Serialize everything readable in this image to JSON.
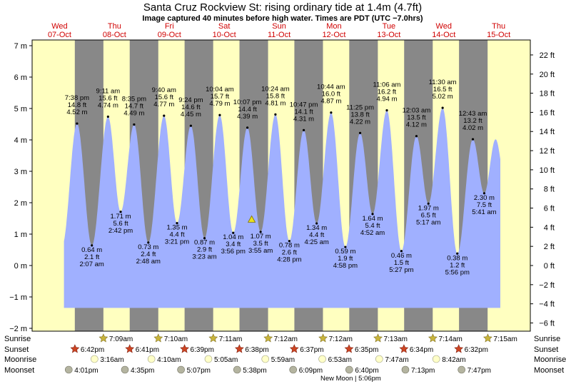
{
  "title": "Santa Cruz Rockview St: rising  ordinary tide at 1.4m (4.7ft)",
  "subtitle": "Image captured 40 minutes before high water. Times are PDT (UTC −7.0hrs)",
  "days": [
    {
      "dow": "Wed",
      "date": "07-Oct"
    },
    {
      "dow": "Thu",
      "date": "08-Oct"
    },
    {
      "dow": "Fri",
      "date": "09-Oct"
    },
    {
      "dow": "Sat",
      "date": "10-Oct"
    },
    {
      "dow": "Sun",
      "date": "11-Oct"
    },
    {
      "dow": "Mon",
      "date": "12-Oct"
    },
    {
      "dow": "Tue",
      "date": "13-Oct"
    },
    {
      "dow": "Wed",
      "date": "14-Oct"
    },
    {
      "dow": "Thu",
      "date": "15-Oct"
    }
  ],
  "colors": {
    "day": "#ffffc0",
    "night": "#888888",
    "water": "#a0b0ff",
    "day_label": "#d00000",
    "sun_icon": "#c8b43c",
    "sunset_icon": "#cc4422",
    "moonrise_icon": "#ffffc8",
    "moonset_icon": "#b4b4a0"
  },
  "chart_data": {
    "type": "area",
    "title": "Santa Cruz Rockview St: rising  ordinary tide at 1.4m (4.7ft)",
    "ylabel_left_unit": "m",
    "ylabel_right_unit": "ft",
    "ylim_m": [
      -2,
      7
    ],
    "left_ticks": [
      "−2 m",
      "−1 m",
      "0 m",
      "1 m",
      "2 m",
      "3 m",
      "4 m",
      "5 m",
      "6 m",
      "7 m"
    ],
    "left_tick_values": [
      -2,
      -1,
      0,
      1,
      2,
      3,
      4,
      5,
      6,
      7
    ],
    "right_ticks": [
      "−6 ft",
      "−4 ft",
      "−2 ft",
      "0 ft",
      "2 ft",
      "4 ft",
      "6 ft",
      "8 ft",
      "10 ft",
      "12 ft",
      "14 ft",
      "16 ft",
      "18 ft",
      "20 ft",
      "22 ft"
    ],
    "right_tick_values": [
      -6,
      -4,
      -2,
      0,
      2,
      4,
      6,
      8,
      10,
      12,
      14,
      16,
      18,
      20,
      22
    ],
    "x_domain_days": [
      0,
      8.62
    ],
    "current_time_day": 4.0,
    "current_level_m": 1.4,
    "tide_series": [
      {
        "kind": "high",
        "time": "7:38 pm",
        "ft": "14.8 ft",
        "m": "4.52 m",
        "t": 0.818,
        "v": 4.52
      },
      {
        "kind": "low",
        "time": "2:07 am",
        "ft": "2.1 ft",
        "m": "0.64 m",
        "t": 1.088,
        "v": 0.64
      },
      {
        "kind": "high",
        "time": "9:11 am",
        "ft": "15.6 ft",
        "m": "4.74 m",
        "t": 1.383,
        "v": 4.74
      },
      {
        "kind": "low",
        "time": "2:42 pm",
        "ft": "5.6 ft",
        "m": "1.71 m",
        "t": 1.613,
        "v": 1.71
      },
      {
        "kind": "high",
        "time": "8:35 pm",
        "ft": "14.7 ft",
        "m": "4.49 m",
        "t": 1.858,
        "v": 4.49
      },
      {
        "kind": "low",
        "time": "2:48 am",
        "ft": "2.4 ft",
        "m": "0.73 m",
        "t": 2.117,
        "v": 0.73
      },
      {
        "kind": "high",
        "time": "9:40 am",
        "ft": "15.6 ft",
        "m": "4.77 m",
        "t": 2.403,
        "v": 4.77
      },
      {
        "kind": "low",
        "time": "3:21 pm",
        "ft": "4.4 ft",
        "m": "1.35 m",
        "t": 2.64,
        "v": 1.35
      },
      {
        "kind": "high",
        "time": "9:24 pm",
        "ft": "14.6 ft",
        "m": "4.45 m",
        "t": 2.892,
        "v": 4.45
      },
      {
        "kind": "low",
        "time": "3:23 am",
        "ft": "2.9 ft",
        "m": "0.87 m",
        "t": 3.141,
        "v": 0.87
      },
      {
        "kind": "high",
        "time": "10:04 am",
        "ft": "15.7 ft",
        "m": "4.79 m",
        "t": 3.419,
        "v": 4.79
      },
      {
        "kind": "low",
        "time": "3:56 pm",
        "ft": "3.4 ft",
        "m": "1.04 m",
        "t": 3.664,
        "v": 1.04
      },
      {
        "kind": "high",
        "time": "10:07 pm",
        "ft": "14.4 ft",
        "m": "4.39 m",
        "t": 3.922,
        "v": 4.39
      },
      {
        "kind": "low",
        "time": "3:55 am",
        "ft": "3.5 ft",
        "m": "1.07 m",
        "t": 4.163,
        "v": 1.07
      },
      {
        "kind": "high",
        "time": "10:24 am",
        "ft": "15.8 ft",
        "m": "4.81 m",
        "t": 4.433,
        "v": 4.81
      },
      {
        "kind": "low",
        "time": "4:28 pm",
        "ft": "2.6 ft",
        "m": "0.78 m",
        "t": 4.686,
        "v": 0.78
      },
      {
        "kind": "high",
        "time": "10:47 pm",
        "ft": "14.1 ft",
        "m": "4.31 m",
        "t": 4.949,
        "v": 4.31
      },
      {
        "kind": "low",
        "time": "4:25 am",
        "ft": "4.4 ft",
        "m": "1.34 m",
        "t": 5.184,
        "v": 1.34
      },
      {
        "kind": "high",
        "time": "10:44 am",
        "ft": "16.0 ft",
        "m": "4.87 m",
        "t": 5.447,
        "v": 4.87
      },
      {
        "kind": "low",
        "time": "4:58 pm",
        "ft": "1.9 ft",
        "m": "0.59 m",
        "t": 5.707,
        "v": 0.59
      },
      {
        "kind": "high",
        "time": "11:25 pm",
        "ft": "13.8 ft",
        "m": "4.22 m",
        "t": 5.976,
        "v": 4.22
      },
      {
        "kind": "low",
        "time": "4:52 am",
        "ft": "5.4 ft",
        "m": "1.64 m",
        "t": 6.203,
        "v": 1.64
      },
      {
        "kind": "high",
        "time": "11:06 am",
        "ft": "16.2 ft",
        "m": "4.94 m",
        "t": 6.463,
        "v": 4.94
      },
      {
        "kind": "low",
        "time": "5:27 pm",
        "ft": "1.5 ft",
        "m": "0.46 m",
        "t": 6.728,
        "v": 0.46
      },
      {
        "kind": "high",
        "time": "12:03 am",
        "ft": "13.5 ft",
        "m": "4.12 m",
        "t": 7.002,
        "v": 4.12
      },
      {
        "kind": "low",
        "time": "5:17 am",
        "ft": "6.5 ft",
        "m": "1.97 m",
        "t": 7.22,
        "v": 1.97
      },
      {
        "kind": "high",
        "time": "11:30 am",
        "ft": "16.5 ft",
        "m": "5.02 m",
        "t": 7.479,
        "v": 5.02
      },
      {
        "kind": "low",
        "time": "5:56 pm",
        "ft": "1.2 ft",
        "m": "0.38 m",
        "t": 7.747,
        "v": 0.38
      },
      {
        "kind": "high",
        "time": "12:43 am",
        "ft": "13.2 ft",
        "m": "4.02 m",
        "t": 8.03,
        "v": 4.02
      },
      {
        "kind": "low",
        "time": "5:41 am",
        "ft": "7.5 ft",
        "m": "2.30 m",
        "t": 8.237,
        "v": 2.3
      }
    ]
  },
  "rows": {
    "sunrise_label": "Sunrise",
    "sunset_label": "Sunset",
    "moonrise_label": "Moonrise",
    "moonset_label": "Moonset",
    "sunrise": [
      "7:09am",
      "7:10am",
      "7:11am",
      "7:12am",
      "7:12am",
      "7:13am",
      "7:14am",
      "7:15am"
    ],
    "sunset": [
      "6:42pm",
      "6:41pm",
      "6:39pm",
      "6:38pm",
      "6:37pm",
      "6:35pm",
      "6:34pm",
      "6:32pm"
    ],
    "moonrise": [
      "3:16am",
      "4:10am",
      "5:05am",
      "5:59am",
      "6:53am",
      "7:47am",
      "8:42am"
    ],
    "moonset": [
      "4:01pm",
      "4:35pm",
      "5:07pm",
      "5:38pm",
      "6:09pm",
      "6:40pm",
      "7:13pm",
      "7:47pm"
    ],
    "moon_phase_note": "New Moon | 5:06pm"
  }
}
